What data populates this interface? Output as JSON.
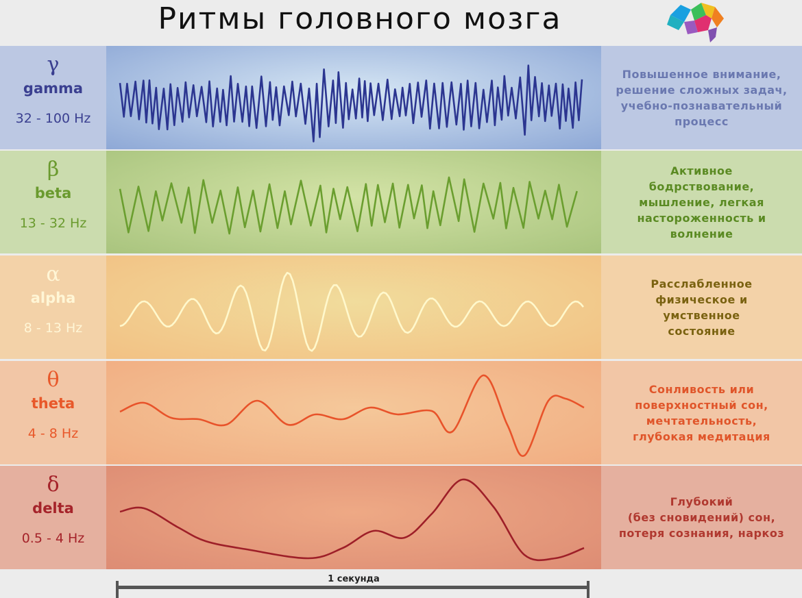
{
  "title": "Ритмы головного мозга",
  "logo": "brain-logo",
  "rhythms": [
    {
      "symbol": "γ",
      "name": "gamma",
      "range": "32 - 100 Hz",
      "description": "Повышенное внимание,\nрешение сложных задач,\nучебно-познавательный\nпроцесс",
      "text_color": "#3a3f90",
      "desc_color": "#6a78b0",
      "wave_color": "#2b3590",
      "left_bg": "#bcc8e3",
      "right_bg": "#bcc8e3",
      "mid_edge": "#8ea8d6",
      "mid_center": "#d6e6f4"
    },
    {
      "symbol": "β",
      "name": "beta",
      "range": "13 - 32 Hz",
      "description": "Активное\nбодрствование,\nмышление, легкая\nнастороженность и\nволнение",
      "text_color": "#6a9a2e",
      "desc_color": "#5a8a22",
      "wave_color": "#6a9e2f",
      "left_bg": "#cbdcae",
      "right_bg": "#cbdcae",
      "mid_edge": "#a9c47e",
      "mid_center": "#d3e3a6"
    },
    {
      "symbol": "α",
      "name": "alpha",
      "range": "8 - 13 Hz",
      "description": "Расслабленное\nфизическое и\nумственное\nсостояние",
      "text_color": "#fff6d6",
      "desc_color": "#7a6210",
      "wave_color": "#fff8cc",
      "left_bg": "#f3d2a8",
      "right_bg": "#f3d2a8",
      "mid_edge": "#f2c184",
      "mid_center": "#f1dc9c"
    },
    {
      "symbol": "θ",
      "name": "theta",
      "range": "4 - 8 Hz",
      "description": "Сонливость или\nповерхностный сон,\nмечтательность,\nглубокая медитация",
      "text_color": "#e8582a",
      "desc_color": "#e0552a",
      "wave_color": "#e8532a",
      "left_bg": "#f2c6a6",
      "right_bg": "#f2c6a6",
      "mid_edge": "#f1ad82",
      "mid_center": "#f5c89a"
    },
    {
      "symbol": "δ",
      "name": "delta",
      "range": "0.5 - 4 Hz",
      "description": "Глубокий\n(без сновидений) сон,\nпотеря сознания, наркоз",
      "text_color": "#a5232a",
      "desc_color": "#b0382f",
      "wave_color": "#9e1f28",
      "left_bg": "#e5b09f",
      "right_bg": "#e5b09f",
      "mid_edge": "#dd8c74",
      "mid_center": "#eea985"
    }
  ],
  "scale": {
    "label": "1 секунда"
  }
}
